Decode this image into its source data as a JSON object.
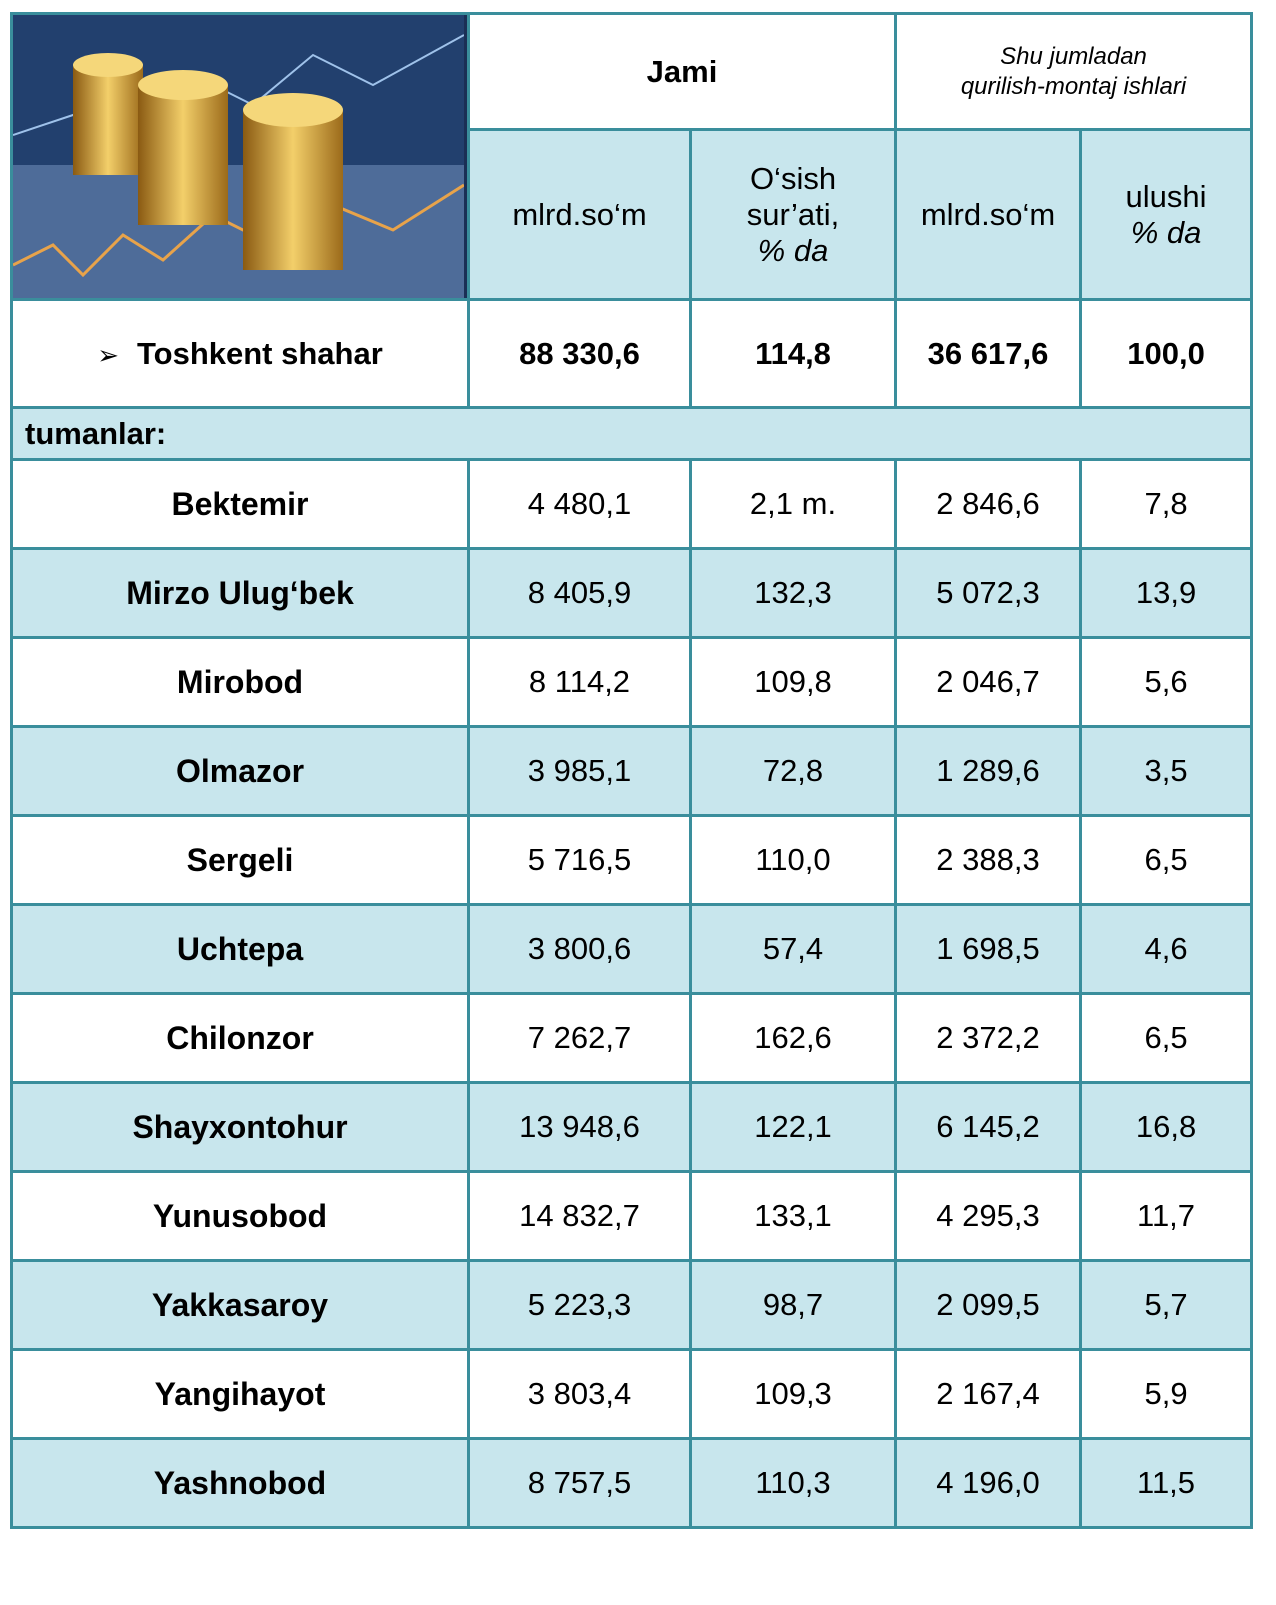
{
  "header": {
    "jami": "Jami",
    "shu_jumladan": [
      "Shu jumladan",
      "qurilish-montaj ishlari"
    ],
    "columns": [
      {
        "lines": [
          "mlrd.so‘m"
        ],
        "italic": []
      },
      {
        "lines": [
          "O‘sish",
          "sur’ati,",
          "% da"
        ],
        "italic": [
          2
        ]
      },
      {
        "lines": [
          "mlrd.so‘m"
        ],
        "italic": []
      },
      {
        "lines": [
          "ulushi",
          "% da"
        ],
        "italic": [
          1
        ]
      }
    ]
  },
  "table": {
    "total": [
      "Toshkent shahar",
      "88 330,6",
      "114,8",
      "36 617,6",
      "100,0"
    ],
    "section": "tumanlar:",
    "rows": [
      [
        "Bektemir",
        "4 480,1",
        "2,1 m.",
        "2 846,6",
        "7,8"
      ],
      [
        "Mirzo Ulug‘bek",
        "8 405,9",
        "132,3",
        "5 072,3",
        "13,9"
      ],
      [
        "Mirobod",
        "8 114,2",
        "109,8",
        "2 046,7",
        "5,6"
      ],
      [
        "Olmazor",
        "3 985,1",
        "72,8",
        "1 289,6",
        "3,5"
      ],
      [
        "Sergeli",
        "5 716,5",
        "110,0",
        "2 388,3",
        "6,5"
      ],
      [
        "Uchtepa",
        "3 800,6",
        "57,4",
        "1 698,5",
        "4,6"
      ],
      [
        "Chilonzor",
        "7 262,7",
        "162,6",
        "2 372,2",
        "6,5"
      ],
      [
        "Shayxontohur",
        "13 948,6",
        "122,1",
        "6 145,2",
        "16,8"
      ],
      [
        "Yunusobod",
        "14 832,7",
        "133,1",
        "4 295,3",
        "11,7"
      ],
      [
        "Yakkasaroy",
        "5 223,3",
        "98,7",
        "2 099,5",
        "5,7"
      ],
      [
        "Yangihayot",
        "3 803,4",
        "109,3",
        "2 167,4",
        "5,9"
      ],
      [
        "Yashnobod",
        "8 757,5",
        "110,3",
        "4 196,0",
        "11,5"
      ]
    ]
  }
}
